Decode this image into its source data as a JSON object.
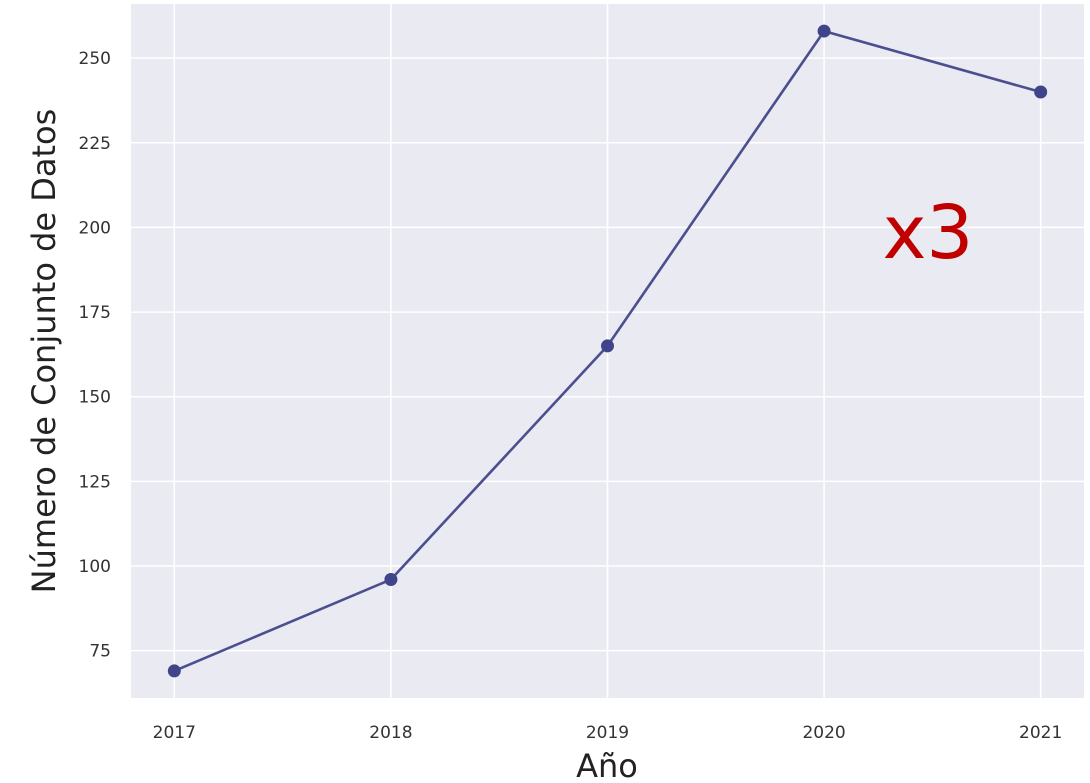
{
  "chart_data": {
    "type": "line",
    "x": [
      2017,
      2018,
      2019,
      2020,
      2021
    ],
    "series": [
      {
        "values": [
          69,
          96,
          165,
          258,
          240
        ]
      }
    ],
    "xlabel": "Año",
    "ylabel": "Número de Conjunto de Datos",
    "x_ticks": [
      "2017",
      "2018",
      "2019",
      "2020",
      "2021"
    ],
    "y_ticks": [
      "75",
      "100",
      "125",
      "150",
      "175",
      "200",
      "225",
      "250"
    ],
    "y_tick_values": [
      75,
      100,
      125,
      150,
      175,
      200,
      225,
      250
    ],
    "xlim": [
      2016.8,
      2021.2
    ],
    "ylim": [
      61,
      266
    ],
    "grid": true,
    "legend": "none",
    "annotation": {
      "text": "x3",
      "color": "#c00000"
    },
    "colors": {
      "background": "#eaeaf2",
      "grid": "#ffffff",
      "line": "#4b4f8f",
      "marker": "#40448a"
    }
  }
}
